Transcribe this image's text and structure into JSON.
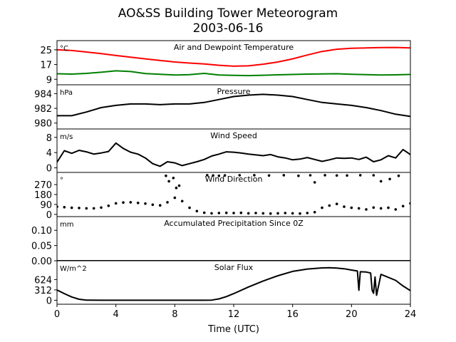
{
  "chart": {
    "title_line1": "AO&SS Building Tower Meteorogram",
    "title_line2": "2003-06-16",
    "xlabel": "Time (UTC)",
    "x_ticks": [
      "0",
      "4",
      "8",
      "12",
      "16",
      "20",
      "24"
    ]
  },
  "chart_data": [
    {
      "type": "line",
      "title": "Air and Dewpoint Temperature",
      "unit": "°C",
      "yticks": [
        "25",
        "17",
        "9"
      ],
      "ylim": [
        6,
        30
      ],
      "series": [
        {
          "color": "#ff0000",
          "x": [
            0,
            1,
            2,
            3,
            4,
            5,
            6,
            7,
            8,
            9,
            10,
            11,
            12,
            13,
            14,
            15,
            16,
            17,
            18,
            19,
            20,
            21,
            22,
            23,
            24
          ],
          "values": [
            25,
            24.6,
            23.8,
            22.9,
            21.9,
            21,
            20.1,
            19.2,
            18.4,
            17.8,
            17.3,
            16.6,
            16.1,
            16.3,
            17.2,
            18.4,
            20.1,
            22.2,
            24.1,
            25.3,
            25.8,
            26,
            26.2,
            26.3,
            26
          ]
        },
        {
          "color": "#008000",
          "x": [
            0,
            1,
            2,
            3,
            4,
            5,
            6,
            7,
            8,
            9,
            10,
            11,
            12,
            13,
            14,
            15,
            16,
            17,
            18,
            19,
            20,
            21,
            22,
            23,
            24
          ],
          "values": [
            12,
            11.8,
            12.2,
            12.8,
            13.6,
            13.2,
            12.1,
            11.7,
            11.3,
            11.5,
            12.2,
            11.3,
            11.1,
            11,
            11.2,
            11.4,
            11.6,
            11.8,
            11.9,
            12,
            11.7,
            11.5,
            11.3,
            11.4,
            11.6
          ]
        }
      ]
    },
    {
      "type": "line",
      "title": "Pressure",
      "unit": "hPa",
      "yticks": [
        "984",
        "982",
        "980"
      ],
      "ylim": [
        979.2,
        985.2
      ],
      "series": [
        {
          "color": "#000000",
          "x": [
            0,
            1,
            2,
            3,
            4,
            5,
            6,
            7,
            8,
            9,
            10,
            11,
            12,
            13,
            14,
            15,
            16,
            17,
            18,
            19,
            20,
            21,
            22,
            23,
            24
          ],
          "values": [
            981,
            981,
            981.5,
            982.1,
            982.4,
            982.6,
            982.6,
            982.5,
            982.6,
            982.6,
            982.8,
            983.2,
            983.6,
            983.8,
            983.9,
            983.8,
            983.6,
            983.2,
            982.8,
            982.6,
            982.4,
            982.1,
            981.7,
            981.2,
            980.9
          ]
        }
      ]
    },
    {
      "type": "line",
      "title": "Wind Speed",
      "unit": "m/s",
      "yticks": [
        "8",
        "4",
        "0"
      ],
      "ylim": [
        -1.2,
        10.2
      ],
      "series": [
        {
          "color": "#000000",
          "x": [
            0,
            0.5,
            1,
            1.5,
            2,
            2.5,
            3,
            3.5,
            4,
            4.5,
            5,
            5.5,
            6,
            6.5,
            7,
            7.5,
            8,
            8.5,
            9,
            9.5,
            10,
            10.5,
            11,
            11.5,
            12,
            12.5,
            13,
            13.5,
            14,
            14.5,
            15,
            15.5,
            16,
            16.5,
            17,
            17.5,
            18,
            18.5,
            19,
            19.5,
            20,
            20.5,
            21,
            21.5,
            22,
            22.5,
            23,
            23.5,
            24
          ],
          "values": [
            1.5,
            4.5,
            3.8,
            4.6,
            4.2,
            3.6,
            3.9,
            4.3,
            6.5,
            5.1,
            4.1,
            3.6,
            2.6,
            1.1,
            0.4,
            1.6,
            1.3,
            0.6,
            1.1,
            1.6,
            2.2,
            3.1,
            3.6,
            4.2,
            4.1,
            3.9,
            3.6,
            3.4,
            3.2,
            3.5,
            2.9,
            2.6,
            2.1,
            2.3,
            2.7,
            2.2,
            1.7,
            2.1,
            2.6,
            2.5,
            2.6,
            2.2,
            2.8,
            1.6,
            2.1,
            3.2,
            2.6,
            4.8,
            3.5
          ]
        }
      ]
    },
    {
      "type": "scatter",
      "title": "Wind Direction",
      "unit": "°",
      "yticks": [
        "270",
        "180",
        "90",
        "0"
      ],
      "ylim": [
        -20,
        380
      ],
      "series": [
        {
          "color": "#000000",
          "x": [
            0,
            0.5,
            1,
            1.5,
            2,
            2.5,
            3,
            3.5,
            4,
            4.5,
            5,
            5.5,
            6,
            6.5,
            7,
            7.5,
            8,
            8.5,
            9,
            9.5,
            10,
            10.5,
            11,
            11.5,
            12,
            12.5,
            13,
            13.5,
            14,
            14.5,
            15,
            15.5,
            16,
            16.5,
            17,
            17.5,
            18,
            18.5,
            19,
            19.5,
            20,
            20.5,
            21,
            21.5,
            22,
            22.5,
            23,
            23.5,
            24
          ],
          "values": [
            70,
            65,
            60,
            58,
            55,
            55,
            62,
            78,
            100,
            108,
            110,
            104,
            98,
            88,
            82,
            110,
            150,
            120,
            60,
            30,
            15,
            10,
            12,
            14,
            12,
            14,
            10,
            12,
            10,
            8,
            10,
            12,
            10,
            8,
            12,
            20,
            60,
            80,
            95,
            70,
            60,
            55,
            45,
            62,
            55,
            60,
            45,
            75,
            100
          ]
        },
        {
          "color": "#000000",
          "x": [
            7.4,
            7.6,
            7.9,
            8.1,
            8.3,
            10.2,
            10.6,
            11,
            11.4,
            12.4,
            13.4,
            14.4,
            15.4,
            16.4,
            17.2,
            17.5,
            18.2,
            19,
            19.7,
            20.6,
            21.5,
            22,
            22.6,
            23.2
          ],
          "values": [
            350,
            300,
            330,
            240,
            260,
            355,
            352,
            350,
            353,
            354,
            355,
            352,
            355,
            350,
            354,
            290,
            355,
            352,
            352,
            355,
            354,
            300,
            320,
            350
          ]
        }
      ]
    },
    {
      "type": "line",
      "title": "Accumulated Precipitation Since 0Z",
      "unit": "mm",
      "yticks": [
        "0.10",
        "0.05",
        "0.00"
      ],
      "ylim": [
        0,
        0.145
      ],
      "series": [
        {
          "color": "#000000",
          "x": [
            0,
            24
          ],
          "values": [
            0,
            0
          ]
        }
      ]
    },
    {
      "type": "line",
      "title": "Solar Flux",
      "unit": "W/m^2",
      "yticks": [
        "624",
        "312",
        "0"
      ],
      "ylim": [
        -120,
        1190
      ],
      "series": [
        {
          "color": "#000000",
          "x": [
            0,
            0.5,
            1,
            1.5,
            2,
            3,
            4,
            5,
            6,
            7,
            8,
            9,
            10,
            10.5,
            11,
            11.5,
            12,
            13,
            14,
            15,
            16,
            17,
            18,
            18.5,
            19,
            19.5,
            20,
            20.4,
            20.5,
            20.6,
            21,
            21.3,
            21.4,
            21.5,
            21.6,
            21.7,
            22,
            23,
            23.5,
            24
          ],
          "values": [
            310,
            200,
            100,
            30,
            5,
            0,
            0,
            0,
            0,
            0,
            0,
            0,
            0,
            5,
            40,
            110,
            200,
            400,
            580,
            740,
            870,
            940,
            975,
            980,
            970,
            950,
            910,
            880,
            300,
            860,
            850,
            820,
            300,
            210,
            700,
            150,
            780,
            600,
            430,
            290
          ]
        }
      ]
    }
  ]
}
